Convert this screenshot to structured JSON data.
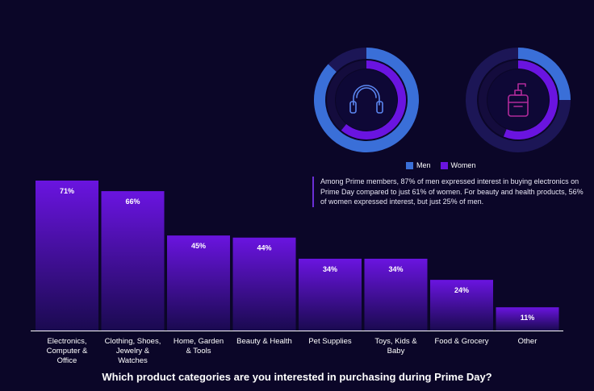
{
  "chart_data": [
    {
      "type": "bar",
      "categories": [
        "Electronics, Computer & Office",
        "Clothing, Shoes, Jewelry & Watches",
        "Home, Garden & Tools",
        "Beauty & Health",
        "Pet Supplies",
        "Toys, Kids & Baby",
        "Food & Grocery",
        "Other"
      ],
      "category_lines": [
        [
          "Electronics,",
          "Computer &",
          "Office"
        ],
        [
          "Clothing, Shoes,",
          "Jewelry &",
          "Watches"
        ],
        [
          "Home, Garden",
          "& Tools"
        ],
        [
          "Beauty & Health"
        ],
        [
          "Pet Supplies"
        ],
        [
          "Toys, Kids &",
          "Baby"
        ],
        [
          "Food & Grocery"
        ],
        [
          "Other"
        ]
      ],
      "values": [
        71,
        66,
        45,
        44,
        34,
        34,
        24,
        11
      ],
      "value_labels": [
        "71%",
        "66%",
        "45%",
        "44%",
        "34%",
        "34%",
        "24%",
        "11%"
      ],
      "title": "Which product categories are you interested in purchasing during Prime Day?",
      "ylim": [
        0,
        71
      ],
      "grid": false
    },
    {
      "type": "pie",
      "variant": "nested-donut",
      "icon": "headphones-icon",
      "series": [
        {
          "name": "Men",
          "value": 87
        },
        {
          "name": "Women",
          "value": 61
        }
      ]
    },
    {
      "type": "pie",
      "variant": "nested-donut",
      "icon": "lotion-bottle-icon",
      "series": [
        {
          "name": "Men",
          "value": 25
        },
        {
          "name": "Women",
          "value": 56
        }
      ]
    }
  ],
  "legend": {
    "items": [
      {
        "label": "Men",
        "color": "#3a6fd8"
      },
      {
        "label": "Women",
        "color": "#6a14e0"
      }
    ],
    "position": "below donuts"
  },
  "note": "Among Prime members, 87% of men expressed interest in buying electronics on Prime Day compared to just 61% of women. For beauty and health products, 56% of women expressed interest, but just 25% of men.",
  "colors": {
    "background": "#0b0628",
    "bar_top": "#6a14e0",
    "bar_bottom": "#1a0a50",
    "men": "#3a6fd8",
    "women": "#6a14e0",
    "track_men": "#1c1656",
    "track_women": "#140c3d"
  }
}
